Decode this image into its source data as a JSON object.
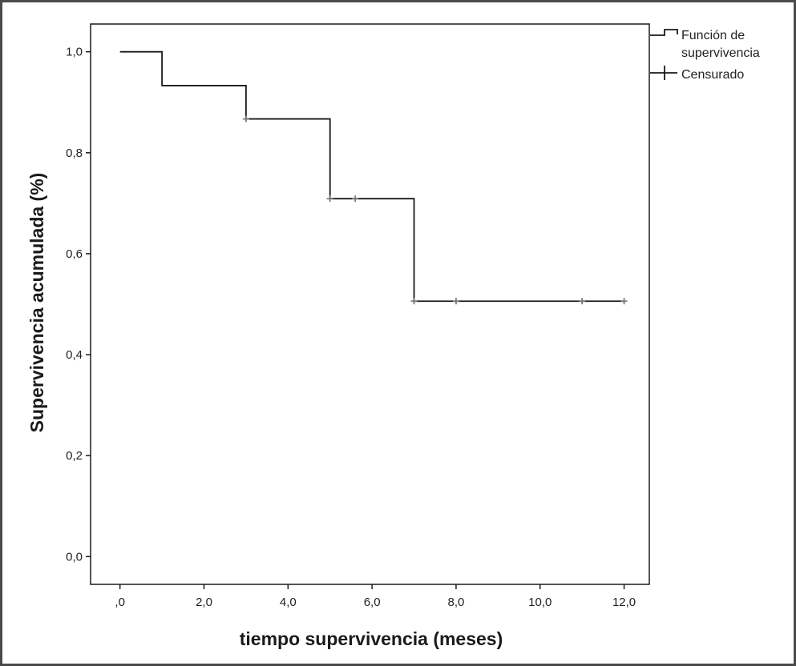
{
  "chart_data": {
    "type": "line",
    "title": "",
    "xlabel": "tiempo supervivencia (meses)",
    "ylabel": "Supervivencia acumulada (%)",
    "xlim": [
      -0.7,
      12.6
    ],
    "ylim": [
      -0.055,
      1.055
    ],
    "x_ticks": [
      0,
      2,
      4,
      6,
      8,
      10,
      12
    ],
    "x_tick_labels": [
      ",0",
      "2,0",
      "4,0",
      "6,0",
      "8,0",
      "10,0",
      "12,0"
    ],
    "y_ticks": [
      0,
      0.2,
      0.4,
      0.6,
      0.8,
      1.0
    ],
    "y_tick_labels": [
      "0,0",
      "0,2",
      "0,4",
      "0,6",
      "0,8",
      "1,0"
    ],
    "grid": false,
    "legend_placement": "outside-top-right",
    "series": [
      {
        "name": "Función de supervivencia",
        "style": "step",
        "color": "#1a1a1a",
        "x": [
          0,
          1,
          3,
          5,
          7,
          12
        ],
        "y": [
          1.0,
          0.933,
          0.867,
          0.709,
          0.506,
          0.506
        ]
      },
      {
        "name": "Censurado",
        "style": "censor-marks",
        "color": "#7a7a7a",
        "x": [
          3,
          5,
          5.6,
          7,
          8,
          11,
          12
        ],
        "y": [
          0.867,
          0.709,
          0.709,
          0.506,
          0.506,
          0.506,
          0.506
        ]
      }
    ],
    "legend": {
      "survival_label_line1": "Función de",
      "survival_label_line2": "supervivencia",
      "censored_label": "Censurado"
    }
  }
}
